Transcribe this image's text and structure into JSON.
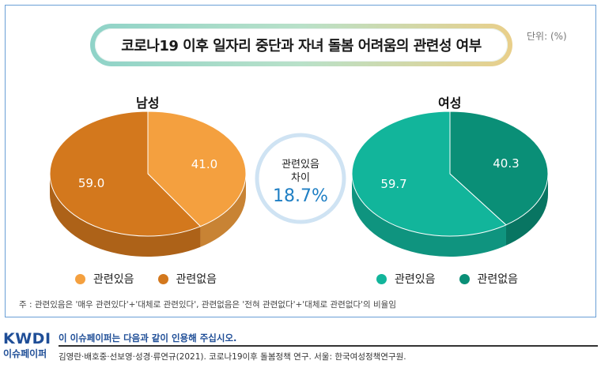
{
  "title": "코로나19 이후 일자리 중단과 자녀 돌봄 어려움의 관련성 여부",
  "unit": "단위: (%)",
  "center_badge": {
    "line1": "관련있음",
    "line2": "차이",
    "value": "18.7%"
  },
  "note": "주 : 관련있음은 '매우 관련있다'+'대체로 관련있다', 관련없음은 '전혀 관련없다'+'대체로 관련없다'의 비율임",
  "footer": {
    "logo_top": "KWDI",
    "logo_bottom": "이슈페이퍼",
    "cite_head": "이 이슈페이퍼는 다음과 같이 인용해 주십시오.",
    "cite_body": "김영란·배호중·선보영·성경·류연규(2021). 코로나19이후 돌봄정책 연구. 서울: 한국여성정책연구원."
  },
  "chart_data": [
    {
      "type": "pie",
      "title": "남성",
      "slices": [
        {
          "label": "관련있음",
          "value": 41.0,
          "display": "41.0",
          "color": "#f4a03f"
        },
        {
          "label": "관련없음",
          "value": 59.0,
          "display": "59.0",
          "color": "#d3781d"
        }
      ],
      "legend": [
        "관련있음",
        "관련없음"
      ]
    },
    {
      "type": "pie",
      "title": "여성",
      "slices": [
        {
          "label": "관련있음",
          "value": 59.7,
          "display": "59.7",
          "color": "#12b59b"
        },
        {
          "label": "관련없음",
          "value": 40.3,
          "display": "40.3",
          "color": "#0a8f77"
        }
      ],
      "legend": [
        "관련있음",
        "관련없음"
      ]
    }
  ]
}
